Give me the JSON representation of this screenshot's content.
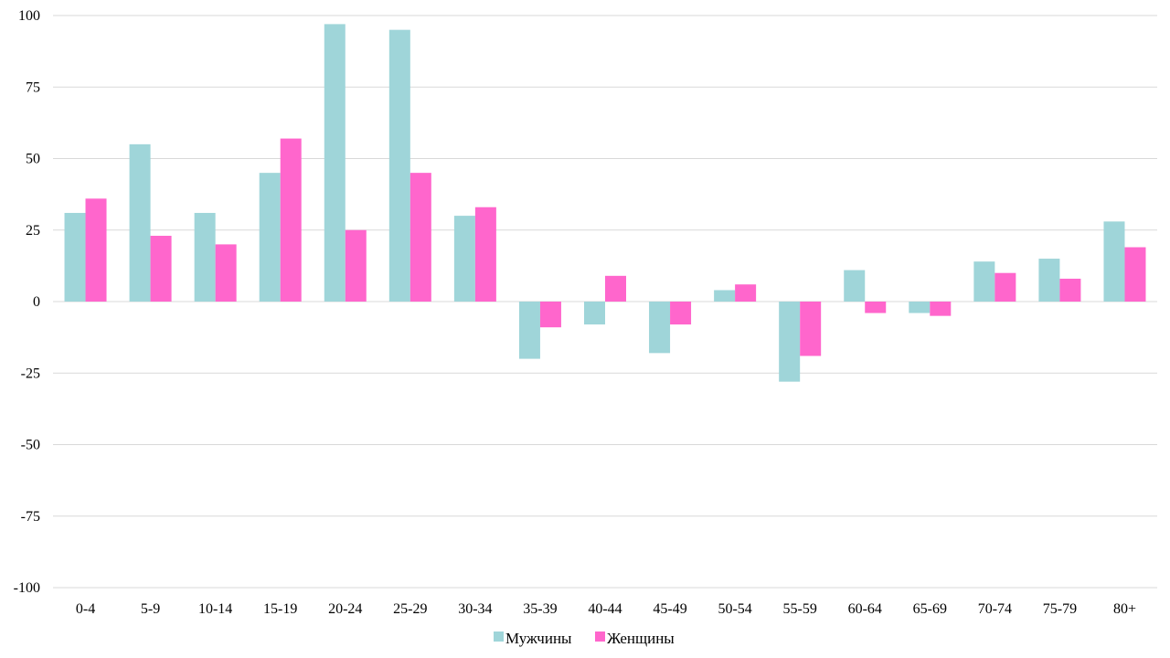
{
  "chart_data": {
    "type": "bar",
    "categories": [
      "0-4",
      "5-9",
      "10-14",
      "15-19",
      "20-24",
      "25-29",
      "30-34",
      "35-39",
      "40-44",
      "45-49",
      "50-54",
      "55-59",
      "60-64",
      "65-69",
      "70-74",
      "75-79",
      "80+"
    ],
    "series": [
      {
        "name": "Мужчины",
        "color": "#9fd5d9",
        "values": [
          31,
          55,
          31,
          45,
          97,
          95,
          30,
          -20,
          -8,
          -18,
          4,
          -28,
          11,
          -4,
          14,
          15,
          28
        ]
      },
      {
        "name": "Женщины",
        "color": "#ff66cc",
        "values": [
          36,
          23,
          20,
          57,
          25,
          45,
          33,
          -9,
          9,
          -8,
          6,
          -19,
          -4,
          -5,
          10,
          8,
          19
        ]
      }
    ],
    "ylim": [
      -100,
      100
    ],
    "yticks": [
      "100",
      "75",
      "50",
      "25",
      "0",
      "-25",
      "-50",
      "-75",
      "-100"
    ],
    "grid": true,
    "legend_position": "bottom"
  }
}
